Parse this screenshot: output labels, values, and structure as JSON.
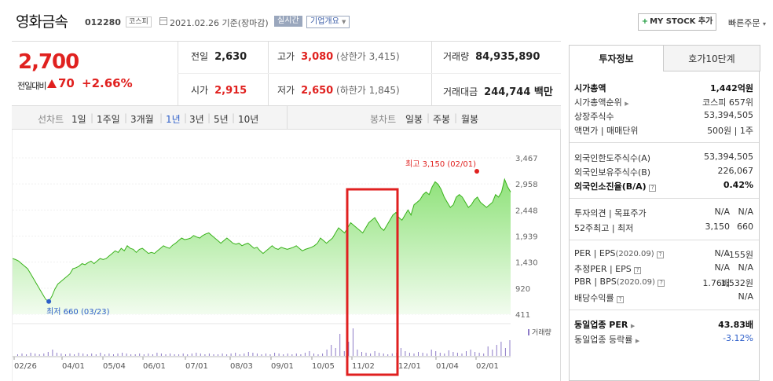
{
  "header": {
    "name": "영화금속",
    "code": "012280",
    "market": "코스피",
    "date": "2021.02.26 기준(장마감)",
    "realtime": "실시간",
    "overview": "기업개요",
    "mystock": "MY STOCK 추가",
    "quick_order": "빠른주문"
  },
  "price": {
    "current": "2,700",
    "change_label": "전일대비",
    "change": "70",
    "change_pct": "+2.66%",
    "prev_close_label": "전일",
    "prev_close": "2,630",
    "high_label": "고가",
    "high": "3,080",
    "upper_limit": "(상한가 3,415)",
    "volume_label": "거래량",
    "volume": "84,935,890",
    "open_label": "시가",
    "open": "2,915",
    "low_label": "저가",
    "low": "2,650",
    "lower_limit": "(하한가 1,845)",
    "amount_label": "거래대금",
    "amount": "244,744 백만"
  },
  "periods": {
    "label": "선차트",
    "items": [
      "1일",
      "1주일",
      "3개월",
      "1년",
      "3년",
      "5년",
      "10년"
    ],
    "active": "1년",
    "candle_label": "봉차트",
    "candle_items": [
      "일봉",
      "주봉",
      "월봉"
    ]
  },
  "chart_data": {
    "type": "area",
    "y_ticks": [
      "3,467",
      "2,958",
      "2,448",
      "1,939",
      "1,430",
      "920",
      "411"
    ],
    "x_ticks": [
      "02/26",
      "04/01",
      "05/04",
      "06/01",
      "07/01",
      "08/03",
      "09/01",
      "10/05",
      "11/02",
      "12/01",
      "01/04",
      "02/01"
    ],
    "ylim": [
      411,
      3467
    ],
    "high_annotation": "최고 3,150 (02/01)",
    "low_annotation": "최저 660 (03/23)",
    "volume_legend": "거래량",
    "price_series": [
      1500,
      1480,
      1450,
      1400,
      1350,
      1300,
      1200,
      1100,
      1000,
      900,
      800,
      700,
      660,
      760,
      900,
      1000,
      1050,
      1100,
      1150,
      1200,
      1300,
      1320,
      1350,
      1400,
      1380,
      1420,
      1450,
      1400,
      1450,
      1500,
      1480,
      1500,
      1550,
      1600,
      1650,
      1620,
      1700,
      1650,
      1750,
      1700,
      1680,
      1620,
      1680,
      1700,
      1650,
      1600,
      1620,
      1600,
      1650,
      1700,
      1750,
      1720,
      1700,
      1760,
      1800,
      1850,
      1900,
      1870,
      1880,
      1900,
      1950,
      1920,
      1900,
      1950,
      1980,
      2000,
      1950,
      1900,
      1850,
      1800,
      1850,
      1900,
      1850,
      1800,
      1780,
      1800,
      1750,
      1780,
      1800,
      1750,
      1700,
      1720,
      1650,
      1600,
      1650,
      1700,
      1750,
      1700,
      1680,
      1720,
      1700,
      1680,
      1700,
      1720,
      1750,
      1700,
      1650,
      1680,
      1700,
      1720,
      1750,
      1800,
      1900,
      1850,
      1800,
      1850,
      1900,
      2000,
      2100,
      2050,
      2000,
      2100,
      2200,
      2150,
      2100,
      2050,
      2000,
      2100,
      2200,
      2250,
      2300,
      2200,
      2100,
      2050,
      2150,
      2250,
      2350,
      2400,
      2300,
      2250,
      2350,
      2450,
      2350,
      2550,
      2600,
      2650,
      2750,
      2800,
      2750,
      2900,
      3000,
      2950,
      2850,
      2700,
      2600,
      2500,
      2550,
      2700,
      2750,
      2700,
      2600,
      2500,
      2550,
      2650,
      2700,
      2600,
      2550,
      2500,
      2550,
      2600,
      2750,
      2700,
      2800,
      3050,
      2900,
      2800
    ],
    "highlight_period": "11/02"
  },
  "info": {
    "tab1": "투자정보",
    "tab2": "호가10단계",
    "rows": [
      {
        "k": "시가총액",
        "v": "1,442억원"
      },
      {
        "k": "시가총액순위",
        "v": "코스피 657위"
      },
      {
        "k": "상장주식수",
        "v": "53,394,505"
      },
      {
        "k": "액면가 | 매매단위",
        "v": "500원 | 1주"
      },
      {
        "k": "외국인한도주식수(A)",
        "v": "53,394,505"
      },
      {
        "k": "외국인보유주식수(B)",
        "v": "226,067"
      },
      {
        "k": "외국인소진율(B/A)",
        "v": "0.42%"
      },
      {
        "k": "투자의견 | 목표주가",
        "v1": "N/A",
        "v": "N/A"
      },
      {
        "k": "52주최고 | 최저",
        "v1": "3,150",
        "v": "660"
      },
      {
        "k": "PER | EPS",
        "k2": "(2020.09)",
        "v1": "N/A",
        "v": "-155원"
      },
      {
        "k": "추정PER | EPS",
        "v1": "N/A",
        "v": "N/A"
      },
      {
        "k": "PBR | BPS",
        "k2": "(2020.09)",
        "v1": "1.76배",
        "v": "1,532원"
      },
      {
        "k": "배당수익률",
        "v": "N/A"
      },
      {
        "k": "동일업종 PER",
        "v": "43.83배"
      },
      {
        "k": "동일업종 등락률",
        "v": "-3.12%"
      }
    ]
  }
}
